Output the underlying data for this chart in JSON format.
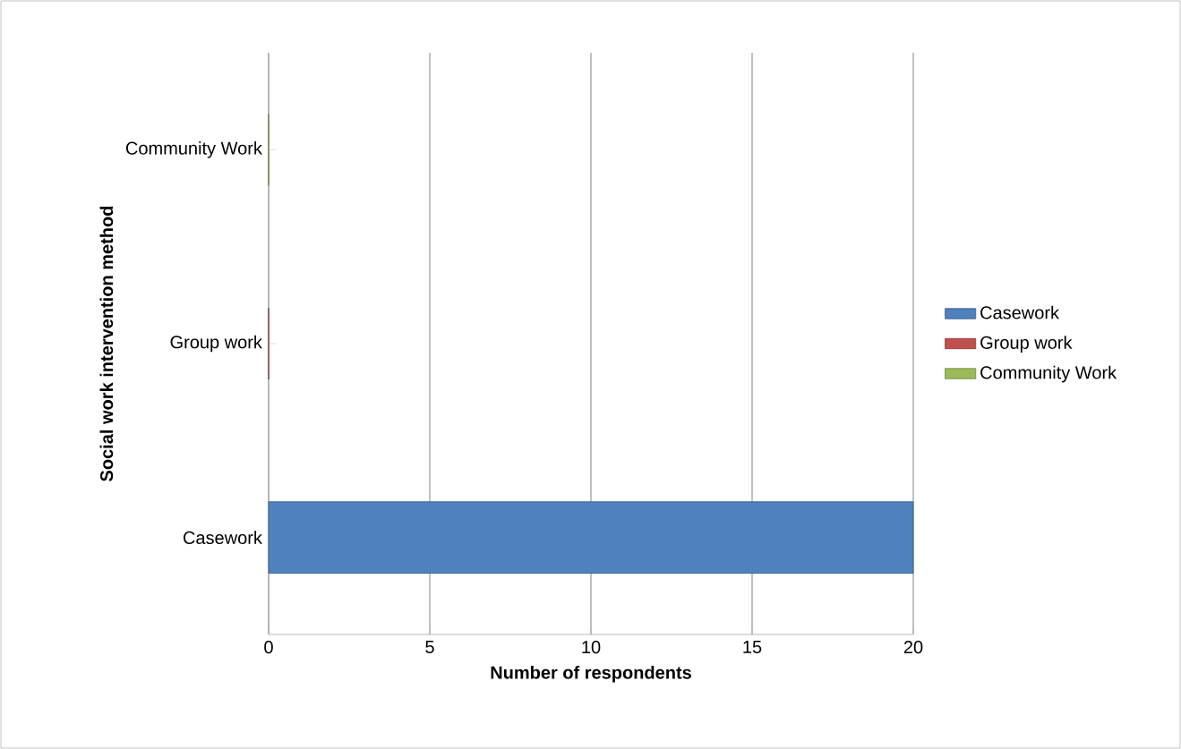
{
  "chart_data": {
    "type": "bar",
    "orientation": "horizontal",
    "xlabel": "Number of respondents",
    "ylabel": "Social work intervention method",
    "categories": [
      "Community Work",
      "Group work",
      "Casework"
    ],
    "series": [
      {
        "name": "Casework",
        "color": "#4f81bd",
        "values": [
          null,
          null,
          20
        ]
      },
      {
        "name": "Group work",
        "color": "#c0504d",
        "values": [
          null,
          0,
          null
        ]
      },
      {
        "name": "Community Work",
        "color": "#9bbb59",
        "values": [
          0,
          null,
          null
        ]
      }
    ],
    "xlim": [
      0,
      20
    ],
    "xticks": [
      0,
      5,
      10,
      15,
      20
    ],
    "grid": "x",
    "legend": "right"
  }
}
